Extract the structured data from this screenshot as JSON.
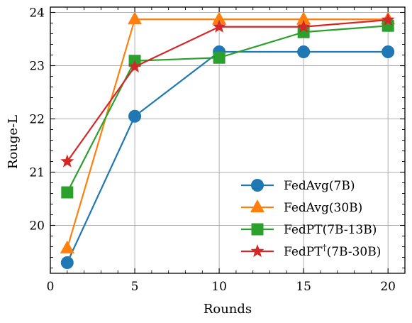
{
  "chart_data": {
    "type": "line",
    "title": "",
    "xlabel": "Rounds",
    "ylabel": "Rouge-L",
    "xlim": [
      0,
      21
    ],
    "ylim": [
      19.1,
      24.1
    ],
    "xticks": [
      0,
      5,
      10,
      15,
      20
    ],
    "yticks": [
      20,
      21,
      22,
      23,
      24
    ],
    "x_minor_step": 1,
    "y_minor_step": 0.2,
    "grid": true,
    "legend_position": "lower-right",
    "x": [
      1,
      5,
      10,
      15,
      20
    ],
    "series": [
      {
        "name": "FedAvg(7B)",
        "name_main": "FedAvg(7B)",
        "name_sup": "",
        "name_rest": "",
        "color": "#1f77b4",
        "marker": "circle",
        "values": [
          19.3,
          22.05,
          23.26,
          23.26,
          23.26
        ]
      },
      {
        "name": "FedAvg(30B)",
        "name_main": "FedAvg(30B)",
        "name_sup": "",
        "name_rest": "",
        "color": "#ff7f0e",
        "marker": "triangle",
        "values": [
          19.57,
          23.87,
          23.87,
          23.87,
          23.87
        ]
      },
      {
        "name": "FedPT(7B-13B)",
        "name_main": "FedPT(7B-13B)",
        "name_sup": "",
        "name_rest": "",
        "color": "#2ca02c",
        "marker": "square",
        "values": [
          20.62,
          23.09,
          23.15,
          23.63,
          23.75
        ]
      },
      {
        "name": "FedPT†(7B-30B)",
        "name_main": "FedPT",
        "name_sup": "†",
        "name_rest": "(7B-30B)",
        "color": "#d62728",
        "marker": "star",
        "values": [
          21.2,
          22.98,
          23.73,
          23.73,
          23.86
        ]
      }
    ]
  }
}
